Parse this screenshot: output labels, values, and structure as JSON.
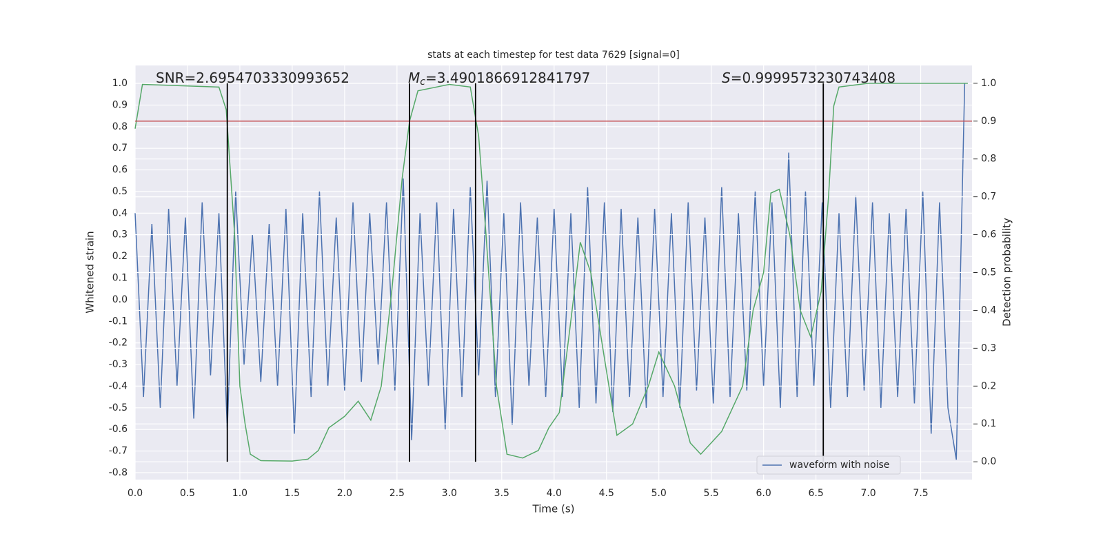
{
  "chart_data": {
    "type": "line",
    "title": "stats at each timestep for test data 7629 [signal=0]",
    "xlabel": "Time (s)",
    "ylabel": "Whitened strain",
    "y2label": "Detection probability",
    "xlim": [
      0,
      7.99
    ],
    "xticks": [
      {
        "value": 0,
        "label": "0.0"
      },
      0.5,
      {
        "value": 1,
        "label": "1.0"
      },
      1.5,
      {
        "value": 2,
        "label": "2.0"
      },
      2.5,
      {
        "value": 3,
        "label": "3.0"
      },
      3.5,
      {
        "value": 4,
        "label": "4.0"
      },
      4.5,
      {
        "value": 5,
        "label": "5.0"
      },
      5.5,
      {
        "value": 6,
        "label": "6.0"
      },
      6.5,
      {
        "value": 7,
        "label": "7.0"
      },
      7.5
    ],
    "ylim": [
      -0.832,
      1.083
    ],
    "yticks": [
      -0.8,
      -0.7,
      -0.6,
      -0.5,
      -0.4,
      -0.3,
      -0.2,
      -0.1,
      {
        "value": 0,
        "label": "0.0"
      },
      0.1,
      0.2,
      0.3,
      0.4,
      0.5,
      0.6,
      0.7,
      0.8,
      0.9,
      {
        "value": 1,
        "label": "1.0"
      }
    ],
    "y2lim": [
      -0.047,
      1.047
    ],
    "y2ticks": [
      {
        "value": 0,
        "label": "0.0"
      },
      0.1,
      0.2,
      0.3,
      0.4,
      0.5,
      0.6,
      0.7,
      0.8,
      0.9,
      {
        "value": 1,
        "label": "1.0"
      }
    ],
    "grid": true,
    "legend": "lower right",
    "series": [
      {
        "name": "waveform with noise",
        "color": "#4c72b0",
        "x": [
          0,
          0.08,
          0.16,
          0.24,
          0.32,
          0.4,
          0.48,
          0.56,
          0.64,
          0.72,
          0.8,
          0.88,
          0.96,
          1.04,
          1.12,
          1.2,
          1.28,
          1.36,
          1.44,
          1.52,
          1.6,
          1.68,
          1.76,
          1.84,
          1.92,
          2,
          2.08,
          2.16,
          2.24,
          2.32,
          2.4,
          2.48,
          2.56,
          2.64,
          2.72,
          2.8,
          2.88,
          2.96,
          3.04,
          3.12,
          3.2,
          3.28,
          3.36,
          3.44,
          3.52,
          3.6,
          3.68,
          3.76,
          3.84,
          3.92,
          4,
          4.08,
          4.16,
          4.24,
          4.32,
          4.4,
          4.48,
          4.56,
          4.64,
          4.72,
          4.8,
          4.88,
          4.96,
          5.04,
          5.12,
          5.2,
          5.28,
          5.36,
          5.44,
          5.52,
          5.6,
          5.68,
          5.76,
          5.84,
          5.92,
          6,
          6.08,
          6.16,
          6.24,
          6.32,
          6.4,
          6.48,
          6.56,
          6.64,
          6.72,
          6.8,
          6.88,
          6.96,
          7.04,
          7.12,
          7.2,
          7.28,
          7.36,
          7.44,
          7.52,
          7.6,
          7.68,
          7.76,
          7.84,
          7.92
        ],
        "values": [
          0.4,
          -0.45,
          0.35,
          -0.5,
          0.42,
          -0.4,
          0.38,
          -0.55,
          0.45,
          -0.35,
          0.4,
          -0.6,
          0.5,
          -0.3,
          0.3,
          -0.38,
          0.35,
          -0.4,
          0.42,
          -0.62,
          0.4,
          -0.45,
          0.5,
          -0.4,
          0.38,
          -0.42,
          0.45,
          -0.38,
          0.4,
          -0.3,
          0.45,
          -0.42,
          0.56,
          -0.65,
          0.4,
          -0.4,
          0.45,
          -0.6,
          0.42,
          -0.45,
          0.52,
          -0.35,
          0.55,
          -0.45,
          0.4,
          -0.58,
          0.45,
          -0.4,
          0.38,
          -0.45,
          0.42,
          -0.45,
          0.4,
          -0.5,
          0.52,
          -0.48,
          0.45,
          -0.52,
          0.42,
          -0.45,
          0.38,
          -0.5,
          0.42,
          -0.45,
          0.4,
          -0.5,
          0.45,
          -0.42,
          0.38,
          -0.48,
          0.52,
          -0.45,
          0.4,
          -0.42,
          0.5,
          -0.4,
          0.45,
          -0.5,
          0.68,
          -0.45,
          0.5,
          -0.4,
          0.45,
          -0.5,
          0.4,
          -0.45,
          0.48,
          -0.42,
          0.45,
          -0.5,
          0.4,
          -0.45,
          0.42,
          -0.48,
          0.5,
          -0.62,
          0.45,
          -0.5,
          -0.74,
          1.0
        ]
      },
      {
        "color": "#55a868",
        "axis": "y2",
        "x": [
          0,
          0.07,
          0.8,
          0.87,
          0.95,
          1.0,
          1.05,
          1.1,
          1.2,
          1.5,
          1.65,
          1.75,
          1.85,
          2.0,
          2.13,
          2.25,
          2.35,
          2.45,
          2.55,
          2.62,
          2.7,
          3.0,
          3.2,
          3.28,
          3.35,
          3.45,
          3.55,
          3.7,
          3.85,
          3.95,
          4.05,
          4.15,
          4.25,
          4.35,
          4.5,
          4.6,
          4.75,
          4.9,
          5.0,
          5.15,
          5.3,
          5.4,
          5.5,
          5.6,
          5.8,
          5.9,
          6.0,
          6.07,
          6.15,
          6.25,
          6.35,
          6.45,
          6.55,
          6.62,
          6.67,
          6.72,
          7.0,
          7.95
        ],
        "values": [
          0.88,
          0.997,
          0.99,
          0.93,
          0.6,
          0.2,
          0.1,
          0.02,
          0.003,
          0.002,
          0.007,
          0.03,
          0.09,
          0.12,
          0.16,
          0.11,
          0.2,
          0.45,
          0.75,
          0.9,
          0.98,
          0.997,
          0.99,
          0.86,
          0.6,
          0.2,
          0.02,
          0.01,
          0.03,
          0.09,
          0.13,
          0.35,
          0.58,
          0.5,
          0.24,
          0.07,
          0.1,
          0.2,
          0.29,
          0.2,
          0.05,
          0.02,
          0.05,
          0.08,
          0.2,
          0.4,
          0.5,
          0.71,
          0.72,
          0.6,
          0.4,
          0.33,
          0.45,
          0.7,
          0.94,
          0.99,
          1.0,
          1.0
        ]
      }
    ],
    "hlines": [
      {
        "value": 0.9,
        "axis": "y2",
        "color": "#c44e52"
      }
    ],
    "vlines": {
      "x": [
        0.88,
        2.62,
        3.25,
        6.57
      ],
      "ymin": 0,
      "ymax": 1,
      "axis": "y2",
      "color": "#000000"
    },
    "annotations": [
      {
        "text": "SNR=2.6954703330993652"
      },
      {
        "symbol": "M",
        "subscript": "c",
        "text": "=3.4901866912841797"
      },
      {
        "symbol": "S",
        "text": "=0.9999573230743408"
      }
    ]
  }
}
